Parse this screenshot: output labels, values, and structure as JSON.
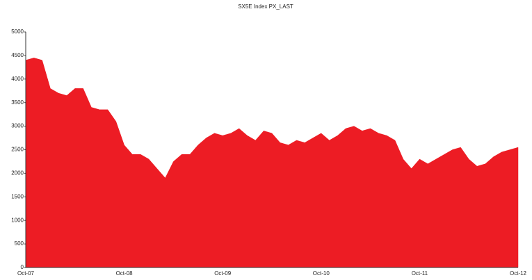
{
  "chart_data": {
    "type": "area",
    "title": "SX5E Index PX_LAST",
    "categories": [
      "Oct-07",
      null,
      null,
      null,
      null,
      null,
      null,
      null,
      null,
      null,
      null,
      null,
      "Oct-08",
      null,
      null,
      null,
      null,
      null,
      null,
      null,
      null,
      null,
      null,
      null,
      "Oct-09",
      null,
      null,
      null,
      null,
      null,
      null,
      null,
      null,
      null,
      null,
      null,
      "Oct-10",
      null,
      null,
      null,
      null,
      null,
      null,
      null,
      null,
      null,
      null,
      null,
      "Oct-11",
      null,
      null,
      null,
      null,
      null,
      null,
      null,
      null,
      null,
      null,
      null,
      "Oct-12"
    ],
    "values": [
      4400,
      4450,
      4400,
      3800,
      3700,
      3650,
      3800,
      3800,
      3400,
      3350,
      3350,
      3100,
      2600,
      2400,
      2400,
      2300,
      2100,
      1900,
      2250,
      2400,
      2400,
      2600,
      2750,
      2850,
      2800,
      2850,
      2950,
      2800,
      2700,
      2900,
      2850,
      2650,
      2600,
      2700,
      2650,
      2750,
      2850,
      2700,
      2800,
      2950,
      3000,
      2900,
      2950,
      2850,
      2800,
      2700,
      2300,
      2100,
      2300,
      2200,
      2300,
      2400,
      2500,
      2550,
      2300,
      2150,
      2200,
      2350,
      2450,
      2500,
      2550
    ],
    "color": "#ed1c24",
    "ylim": [
      0,
      5000
    ],
    "yticks": [
      0,
      500,
      1000,
      1500,
      2000,
      2500,
      3000,
      3500,
      4000,
      4500,
      5000
    ],
    "grid": false
  }
}
